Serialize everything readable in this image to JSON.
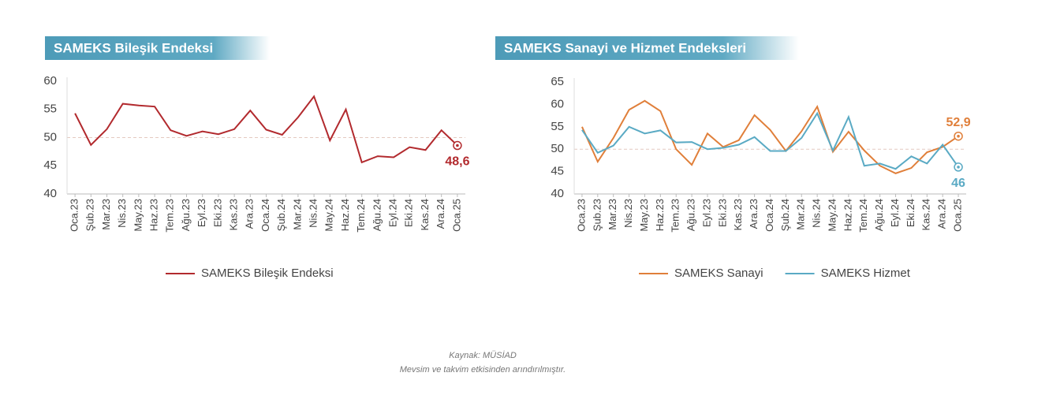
{
  "chart_data": [
    {
      "type": "line",
      "title": "SAMEKS Bileşik Endeksi",
      "categories": [
        "Oca.23",
        "Şub.23",
        "Mar.23",
        "Nis.23",
        "May.23",
        "Haz.23",
        "Tem.23",
        "Ağu.23",
        "Eyl.23",
        "Eki.23",
        "Kas.23",
        "Ara.23",
        "Oca.24",
        "Şub.24",
        "Mar.24",
        "Nis.24",
        "May.24",
        "Haz.24",
        "Tem.24",
        "Ağu.24",
        "Eyl.24",
        "Eki.24",
        "Kas.24",
        "Ara.24",
        "Oca.25"
      ],
      "series": [
        {
          "name": "SAMEKS Bileşik Endeksi",
          "color": "#b22a2e",
          "values": [
            54.3,
            48.7,
            51.5,
            56.0,
            55.7,
            55.5,
            51.3,
            50.3,
            51.1,
            50.6,
            51.5,
            54.8,
            51.4,
            50.5,
            53.6,
            57.3,
            49.5,
            55.0,
            45.6,
            46.7,
            46.5,
            48.3,
            47.8,
            51.3,
            48.6
          ],
          "value_labels": [
            null,
            null,
            null,
            null,
            null,
            null,
            null,
            null,
            null,
            null,
            null,
            null,
            null,
            null,
            null,
            null,
            null,
            null,
            null,
            null,
            null,
            null,
            null,
            null,
            "48,6"
          ]
        }
      ],
      "ylim": [
        40,
        60
      ],
      "yticks": [
        40,
        45,
        50,
        55,
        60
      ],
      "reference_line": 50
    },
    {
      "type": "line",
      "title": "SAMEKS Sanayi ve Hizmet Endeksleri",
      "categories": [
        "Oca.23",
        "Şub.23",
        "Mar.23",
        "Nis.23",
        "May.23",
        "Haz.23",
        "Tem.23",
        "Ağu.23",
        "Eyl.23",
        "Eki.23",
        "Kas.23",
        "Ara.23",
        "Oca.24",
        "Şub.24",
        "Mar.24",
        "Nis.24",
        "May.24",
        "Haz.24",
        "Tem.24",
        "Ağu.24",
        "Eyl.24",
        "Eki.24",
        "Kas.24",
        "Ara.24",
        "Oca.25"
      ],
      "series": [
        {
          "name": "SAMEKS Sanayi",
          "color": "#e07f3a",
          "values": [
            55.0,
            47.2,
            52.5,
            58.8,
            60.8,
            58.5,
            50.0,
            46.5,
            53.5,
            50.5,
            52.0,
            57.6,
            54.3,
            49.6,
            54.0,
            59.5,
            49.4,
            53.9,
            49.7,
            46.3,
            44.6,
            45.8,
            49.3,
            50.5,
            52.9
          ],
          "value_labels": [
            null,
            null,
            null,
            null,
            null,
            null,
            null,
            null,
            null,
            null,
            null,
            null,
            null,
            null,
            null,
            null,
            null,
            null,
            null,
            null,
            null,
            null,
            null,
            null,
            "52,9"
          ]
        },
        {
          "name": "SAMEKS Hizmet",
          "color": "#5aaac4",
          "values": [
            54.3,
            49.2,
            50.8,
            55.0,
            53.5,
            54.2,
            51.5,
            51.6,
            50.0,
            50.3,
            51.0,
            52.7,
            49.6,
            49.6,
            52.5,
            58.0,
            49.7,
            57.2,
            46.3,
            46.8,
            45.6,
            48.4,
            46.8,
            51.0,
            46
          ],
          "value_labels": [
            null,
            null,
            null,
            null,
            null,
            null,
            null,
            null,
            null,
            null,
            null,
            null,
            null,
            null,
            null,
            null,
            null,
            null,
            null,
            null,
            null,
            null,
            null,
            null,
            "46"
          ]
        }
      ],
      "ylim": [
        40,
        65
      ],
      "yticks": [
        40,
        45,
        50,
        55,
        60,
        65
      ],
      "reference_line": 50
    }
  ],
  "footer": {
    "source": "Kaynak: MÜSİAD",
    "note": "Mevsim ve takvim etkisinden arındırılmıştır."
  }
}
